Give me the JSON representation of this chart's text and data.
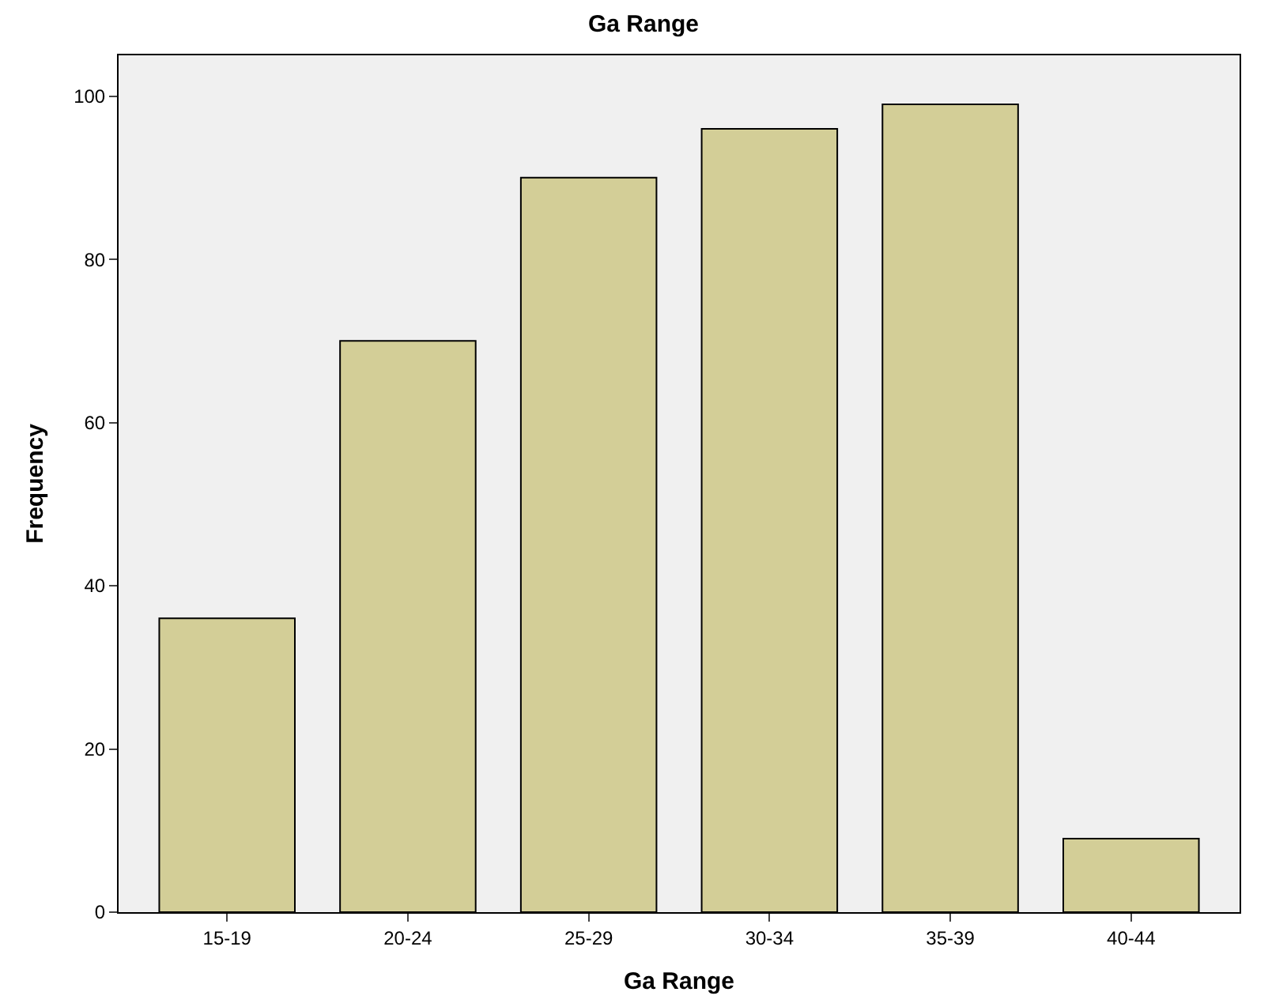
{
  "chart_data": {
    "type": "bar",
    "title": "Ga Range",
    "xlabel": "Ga Range",
    "ylabel": "Frequency",
    "categories": [
      "15-19",
      "20-24",
      "25-29",
      "30-34",
      "35-39",
      "40-44"
    ],
    "values": [
      36,
      70,
      90,
      96,
      99,
      9
    ],
    "color": "#d3ce97",
    "ylim": [
      0,
      105
    ],
    "yticks": [
      0,
      20,
      40,
      60,
      80,
      100
    ],
    "grid": false
  }
}
